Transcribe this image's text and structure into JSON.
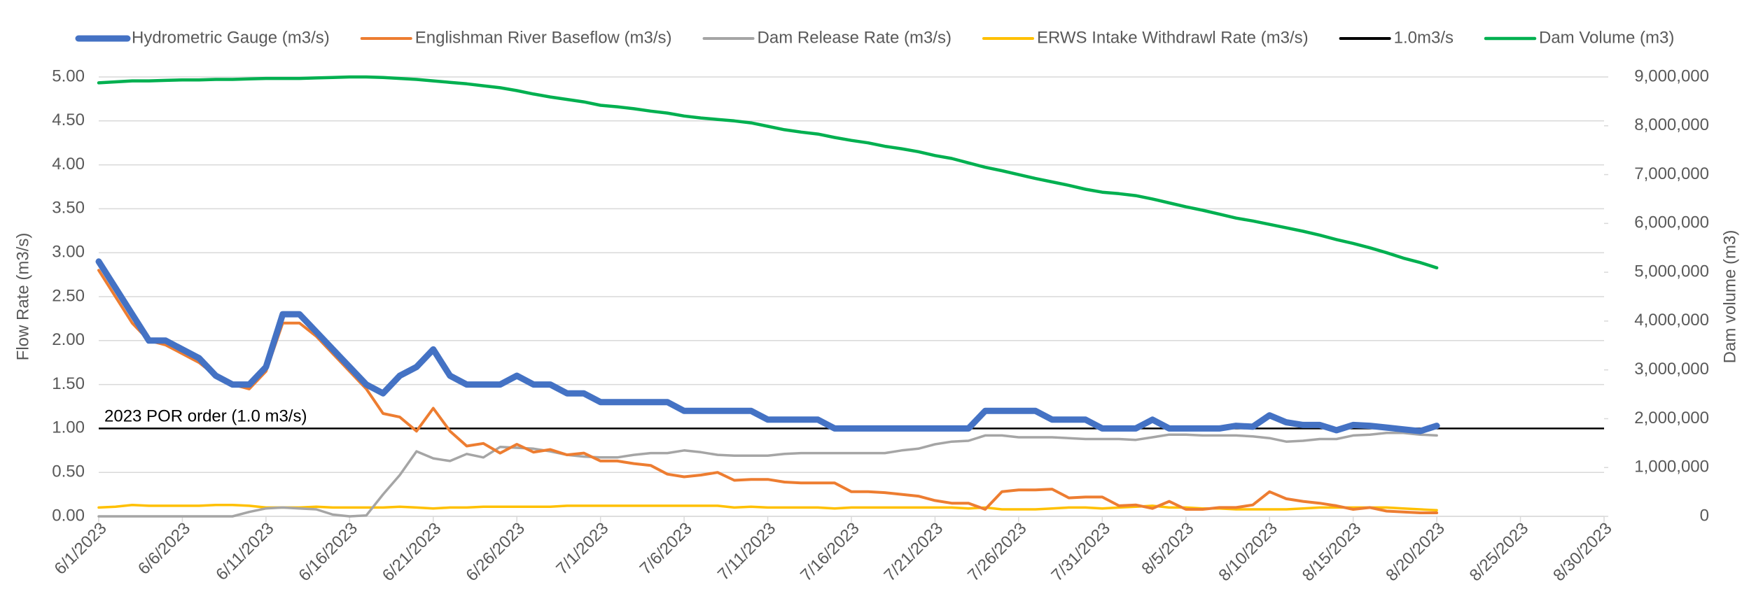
{
  "chart_data": {
    "type": "line",
    "y_label": "Flow Rate (m3/s)",
    "y2_label": "Dam volume (m3)",
    "annotation": "2023 POR order (1.0 m3/s)",
    "x": [
      "6/1/2023",
      "6/2/2023",
      "6/3/2023",
      "6/4/2023",
      "6/5/2023",
      "6/6/2023",
      "6/7/2023",
      "6/8/2023",
      "6/9/2023",
      "6/10/2023",
      "6/11/2023",
      "6/12/2023",
      "6/13/2023",
      "6/14/2023",
      "6/15/2023",
      "6/16/2023",
      "6/17/2023",
      "6/18/2023",
      "6/19/2023",
      "6/20/2023",
      "6/21/2023",
      "6/22/2023",
      "6/23/2023",
      "6/24/2023",
      "6/25/2023",
      "6/26/2023",
      "6/27/2023",
      "6/28/2023",
      "6/29/2023",
      "6/30/2023",
      "7/1/2023",
      "7/2/2023",
      "7/3/2023",
      "7/4/2023",
      "7/5/2023",
      "7/6/2023",
      "7/7/2023",
      "7/8/2023",
      "7/9/2023",
      "7/10/2023",
      "7/11/2023",
      "7/12/2023",
      "7/13/2023",
      "7/14/2023",
      "7/15/2023",
      "7/16/2023",
      "7/17/2023",
      "7/18/2023",
      "7/19/2023",
      "7/20/2023",
      "7/21/2023",
      "7/22/2023",
      "7/23/2023",
      "7/24/2023",
      "7/25/2023",
      "7/26/2023",
      "7/27/2023",
      "7/28/2023",
      "7/29/2023",
      "7/30/2023",
      "7/31/2023",
      "8/1/2023",
      "8/2/2023",
      "8/3/2023",
      "8/4/2023",
      "8/5/2023",
      "8/6/2023",
      "8/7/2023",
      "8/8/2023",
      "8/9/2023",
      "8/10/2023",
      "8/11/2023",
      "8/12/2023",
      "8/13/2023",
      "8/14/2023",
      "8/15/2023",
      "8/16/2023",
      "8/17/2023",
      "8/18/2023",
      "8/19/2023",
      "8/20/2023"
    ],
    "xlim": [
      "6/1/2023",
      "8/30/2023"
    ],
    "xticks": [
      "6/1/2023",
      "6/6/2023",
      "6/11/2023",
      "6/16/2023",
      "6/21/2023",
      "6/26/2023",
      "7/1/2023",
      "7/6/2023",
      "7/11/2023",
      "7/16/2023",
      "7/21/2023",
      "7/26/2023",
      "7/31/2023",
      "8/5/2023",
      "8/10/2023",
      "8/15/2023",
      "8/20/2023",
      "8/25/2023",
      "8/30/2023"
    ],
    "ylim": [
      0,
      5
    ],
    "yticks": [
      {
        "value": 0,
        "label": "0.00"
      },
      {
        "value": 0.5,
        "label": "0.50"
      },
      {
        "value": 1,
        "label": "1.00"
      },
      {
        "value": 1.5,
        "label": "1.50"
      },
      {
        "value": 2,
        "label": "2.00"
      },
      {
        "value": 2.5,
        "label": "2.50"
      },
      {
        "value": 3,
        "label": "3.00"
      },
      {
        "value": 3.5,
        "label": "3.50"
      },
      {
        "value": 4,
        "label": "4.00"
      },
      {
        "value": 4.5,
        "label": "4.50"
      },
      {
        "value": 5,
        "label": "5.00"
      }
    ],
    "y2lim": [
      0,
      9000000
    ],
    "y2ticks": [
      0,
      {
        "value": 1000000,
        "label": "1,000,000"
      },
      {
        "value": 2000000,
        "label": "2,000,000"
      },
      {
        "value": 3000000,
        "label": "3,000,000"
      },
      {
        "value": 4000000,
        "label": "4,000,000"
      },
      {
        "value": 5000000,
        "label": "5,000,000"
      },
      {
        "value": 6000000,
        "label": "6,000,000"
      },
      {
        "value": 7000000,
        "label": "7,000,000"
      },
      {
        "value": 8000000,
        "label": "8,000,000"
      },
      {
        "value": 9000000,
        "label": "9,000,000"
      }
    ],
    "grid": true,
    "legend": "top",
    "series": [
      {
        "name": "Hydrometric Gauge (m3/s)",
        "color": "#4472c4",
        "width": 9,
        "values": [
          2.9,
          2.6,
          2.3,
          2.0,
          2.0,
          1.9,
          1.8,
          1.6,
          1.5,
          1.5,
          1.7,
          2.3,
          2.3,
          2.1,
          1.9,
          1.7,
          1.5,
          1.4,
          1.6,
          1.7,
          1.9,
          1.6,
          1.5,
          1.5,
          1.5,
          1.6,
          1.5,
          1.5,
          1.4,
          1.4,
          1.3,
          1.3,
          1.3,
          1.3,
          1.3,
          1.2,
          1.2,
          1.2,
          1.2,
          1.2,
          1.1,
          1.1,
          1.1,
          1.1,
          1.0,
          1.0,
          1.0,
          1.0,
          1.0,
          1.0,
          1.0,
          1.0,
          1.0,
          1.2,
          1.2,
          1.2,
          1.2,
          1.1,
          1.1,
          1.1,
          1.0,
          1.0,
          1.0,
          1.1,
          1.0,
          1.0,
          1.0,
          1.0,
          1.03,
          1.02,
          1.15,
          1.07,
          1.04,
          1.04,
          0.98,
          1.04,
          1.03,
          1.01,
          0.99,
          0.97,
          1.03
        ]
      },
      {
        "name": "Englishman River Baseflow (m3/s)",
        "color": "#ed7d31",
        "width": 4,
        "values": [
          2.8,
          2.5,
          2.2,
          2.0,
          1.95,
          1.85,
          1.75,
          1.6,
          1.5,
          1.45,
          1.65,
          2.2,
          2.2,
          2.05,
          1.85,
          1.65,
          1.45,
          1.17,
          1.13,
          0.97,
          1.23,
          0.97,
          0.8,
          0.83,
          0.72,
          0.82,
          0.73,
          0.76,
          0.7,
          0.72,
          0.63,
          0.63,
          0.6,
          0.58,
          0.48,
          0.45,
          0.47,
          0.5,
          0.41,
          0.42,
          0.42,
          0.39,
          0.38,
          0.38,
          0.38,
          0.28,
          0.28,
          0.27,
          0.25,
          0.23,
          0.18,
          0.15,
          0.15,
          0.08,
          0.28,
          0.3,
          0.3,
          0.31,
          0.21,
          0.22,
          0.22,
          0.12,
          0.13,
          0.09,
          0.17,
          0.08,
          0.08,
          0.1,
          0.1,
          0.13,
          0.28,
          0.2,
          0.17,
          0.15,
          0.12,
          0.08,
          0.1,
          0.06,
          0.05,
          0.04,
          0.04
        ]
      },
      {
        "name": "Dam Release Rate (m3/s)",
        "color": "#a5a5a5",
        "width": 3.5,
        "values": [
          0,
          0,
          0,
          0,
          0,
          0,
          0,
          0,
          0,
          0.05,
          0.09,
          0.1,
          0.09,
          0.08,
          0.02,
          0,
          0.01,
          0.25,
          0.47,
          0.74,
          0.66,
          0.63,
          0.71,
          0.67,
          0.79,
          0.78,
          0.77,
          0.74,
          0.7,
          0.68,
          0.67,
          0.67,
          0.7,
          0.72,
          0.72,
          0.75,
          0.73,
          0.7,
          0.69,
          0.69,
          0.69,
          0.71,
          0.72,
          0.72,
          0.72,
          0.72,
          0.72,
          0.72,
          0.75,
          0.77,
          0.82,
          0.85,
          0.86,
          0.92,
          0.92,
          0.9,
          0.9,
          0.9,
          0.89,
          0.88,
          0.88,
          0.88,
          0.87,
          0.9,
          0.93,
          0.93,
          0.92,
          0.92,
          0.92,
          0.91,
          0.89,
          0.85,
          0.86,
          0.88,
          0.88,
          0.92,
          0.93,
          0.95,
          0.95,
          0.93,
          0.92
        ]
      },
      {
        "name": "ERWS Intake Withdrawl Rate (m3/s)",
        "color": "#ffc000",
        "width": 3.5,
        "values": [
          0.1,
          0.11,
          0.13,
          0.12,
          0.12,
          0.12,
          0.12,
          0.13,
          0.13,
          0.12,
          0.1,
          0.1,
          0.1,
          0.11,
          0.1,
          0.1,
          0.1,
          0.1,
          0.11,
          0.1,
          0.09,
          0.1,
          0.1,
          0.11,
          0.11,
          0.11,
          0.11,
          0.11,
          0.12,
          0.12,
          0.12,
          0.12,
          0.12,
          0.12,
          0.12,
          0.12,
          0.12,
          0.12,
          0.1,
          0.11,
          0.1,
          0.1,
          0.1,
          0.1,
          0.09,
          0.1,
          0.1,
          0.1,
          0.1,
          0.1,
          0.1,
          0.1,
          0.09,
          0.1,
          0.08,
          0.08,
          0.08,
          0.09,
          0.1,
          0.1,
          0.09,
          0.1,
          0.11,
          0.12,
          0.1,
          0.1,
          0.09,
          0.09,
          0.08,
          0.08,
          0.08,
          0.08,
          0.09,
          0.1,
          0.1,
          0.1,
          0.1,
          0.1,
          0.09,
          0.08,
          0.07
        ]
      },
      {
        "name": "1.0m3/s",
        "color": "#000000",
        "width": 2.5,
        "value": 1.0
      },
      {
        "name": "Dam Volume (m3)",
        "color": "#00b050",
        "width": 4.5,
        "axis": "y2",
        "values": [
          8880000,
          8900000,
          8920000,
          8920000,
          8930000,
          8940000,
          8940000,
          8950000,
          8950000,
          8960000,
          8970000,
          8970000,
          8970000,
          8980000,
          8990000,
          9000000,
          9000000,
          8990000,
          8970000,
          8950000,
          8920000,
          8890000,
          8860000,
          8820000,
          8780000,
          8720000,
          8650000,
          8590000,
          8540000,
          8490000,
          8420000,
          8390000,
          8350000,
          8300000,
          8260000,
          8200000,
          8160000,
          8130000,
          8100000,
          8060000,
          7990000,
          7920000,
          7870000,
          7830000,
          7760000,
          7700000,
          7650000,
          7580000,
          7530000,
          7470000,
          7390000,
          7330000,
          7240000,
          7150000,
          7080000,
          7000000,
          6920000,
          6850000,
          6780000,
          6700000,
          6640000,
          6610000,
          6570000,
          6500000,
          6420000,
          6340000,
          6270000,
          6190000,
          6110000,
          6050000,
          5980000,
          5910000,
          5840000,
          5760000,
          5670000,
          5590000,
          5500000,
          5400000,
          5290000,
          5200000,
          5090000
        ]
      }
    ]
  }
}
